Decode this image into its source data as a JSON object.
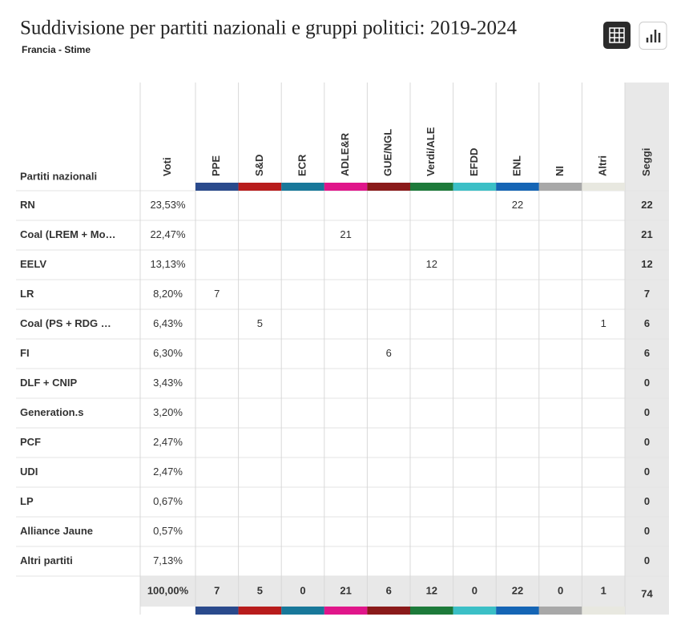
{
  "header": {
    "title": "Suddivisione per partiti nazionali e gruppi politici: 2019-2024",
    "subtitle": "Francia - Stime"
  },
  "table": {
    "first_header": "Partiti nazionali",
    "votes_header": "Voti",
    "seats_header": "Seggi",
    "groups": [
      {
        "name": "PPE",
        "color": "#2a4a8c"
      },
      {
        "name": "S&D",
        "color": "#b81c1c"
      },
      {
        "name": "ECR",
        "color": "#18789a"
      },
      {
        "name": "ADLE&R",
        "color": "#e0168a"
      },
      {
        "name": "GUE/NGL",
        "color": "#8a1a1a"
      },
      {
        "name": "Verdi/ALE",
        "color": "#1d7a3a"
      },
      {
        "name": "EFDD",
        "color": "#3bbfc6"
      },
      {
        "name": "ENL",
        "color": "#1565b5"
      },
      {
        "name": "NI",
        "color": "#a8a8a8"
      },
      {
        "name": "Altri",
        "color": "#e8e8e0"
      }
    ],
    "rows": [
      {
        "name": "RN",
        "votes": "23,53%",
        "cells": [
          null,
          null,
          null,
          null,
          null,
          null,
          null,
          22,
          null,
          null
        ],
        "seats": 22
      },
      {
        "name": "Coal (LREM + Mo…",
        "votes": "22,47%",
        "cells": [
          null,
          null,
          null,
          21,
          null,
          null,
          null,
          null,
          null,
          null
        ],
        "seats": 21
      },
      {
        "name": "EELV",
        "votes": "13,13%",
        "cells": [
          null,
          null,
          null,
          null,
          null,
          12,
          null,
          null,
          null,
          null
        ],
        "seats": 12
      },
      {
        "name": "LR",
        "votes": "8,20%",
        "cells": [
          7,
          null,
          null,
          null,
          null,
          null,
          null,
          null,
          null,
          null
        ],
        "seats": 7
      },
      {
        "name": "Coal (PS + RDG …",
        "votes": "6,43%",
        "cells": [
          null,
          5,
          null,
          null,
          null,
          null,
          null,
          null,
          null,
          1
        ],
        "seats": 6
      },
      {
        "name": "FI",
        "votes": "6,30%",
        "cells": [
          null,
          null,
          null,
          null,
          6,
          null,
          null,
          null,
          null,
          null
        ],
        "seats": 6
      },
      {
        "name": "DLF + CNIP",
        "votes": "3,43%",
        "cells": [
          null,
          null,
          null,
          null,
          null,
          null,
          null,
          null,
          null,
          null
        ],
        "seats": 0
      },
      {
        "name": "Generation.s",
        "votes": "3,20%",
        "cells": [
          null,
          null,
          null,
          null,
          null,
          null,
          null,
          null,
          null,
          null
        ],
        "seats": 0
      },
      {
        "name": "PCF",
        "votes": "2,47%",
        "cells": [
          null,
          null,
          null,
          null,
          null,
          null,
          null,
          null,
          null,
          null
        ],
        "seats": 0
      },
      {
        "name": "UDI",
        "votes": "2,47%",
        "cells": [
          null,
          null,
          null,
          null,
          null,
          null,
          null,
          null,
          null,
          null
        ],
        "seats": 0
      },
      {
        "name": "LP",
        "votes": "0,67%",
        "cells": [
          null,
          null,
          null,
          null,
          null,
          null,
          null,
          null,
          null,
          null
        ],
        "seats": 0
      },
      {
        "name": "Alliance Jaune",
        "votes": "0,57%",
        "cells": [
          null,
          null,
          null,
          null,
          null,
          null,
          null,
          null,
          null,
          null
        ],
        "seats": 0
      },
      {
        "name": "Altri partiti",
        "votes": "7,13%",
        "cells": [
          null,
          null,
          null,
          null,
          null,
          null,
          null,
          null,
          null,
          null
        ],
        "seats": 0
      }
    ],
    "totals": {
      "votes": "100,00%",
      "cells": [
        7,
        5,
        0,
        21,
        6,
        12,
        0,
        22,
        0,
        1
      ],
      "seats": 74
    }
  }
}
